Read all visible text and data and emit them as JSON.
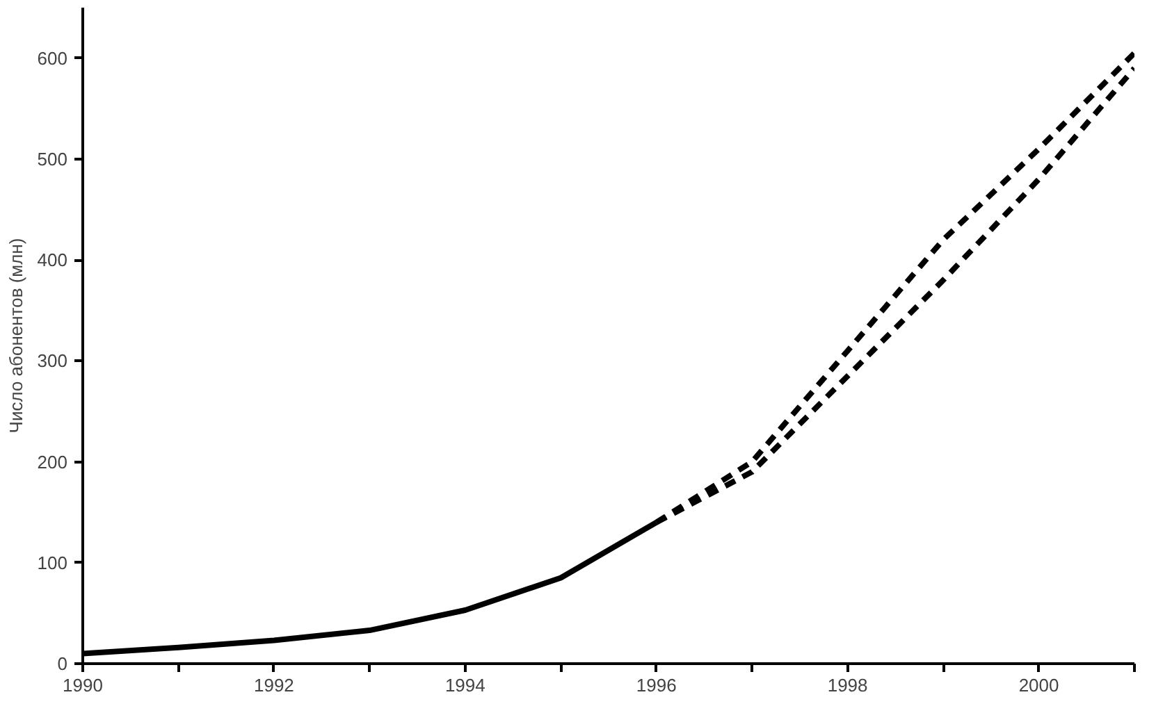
{
  "chart_data": {
    "type": "line",
    "ylabel": "Число абонентов (млн)",
    "xlim": [
      1990,
      2001
    ],
    "ylim": [
      0,
      650
    ],
    "xticks": [
      1990,
      {
        "value": 1991,
        "label": null
      },
      1992,
      {
        "value": 1993,
        "label": null
      },
      1994,
      {
        "value": 1995,
        "label": null
      },
      1996,
      {
        "value": 1997,
        "label": null
      },
      1998,
      {
        "value": 1999,
        "label": null
      },
      2000,
      {
        "value": 2001,
        "label": null
      }
    ],
    "yticks": [
      0,
      100,
      200,
      300,
      400,
      500,
      600
    ],
    "grid": false,
    "marker": "none",
    "series": [
      {
        "color": "#000000",
        "line_style": "solid",
        "x": [
          1990,
          1991,
          1992,
          1993,
          1994,
          1995,
          1996
        ],
        "values": [
          10,
          16,
          23,
          33,
          53,
          85,
          140
        ]
      },
      {
        "color": "#000000",
        "line_style": "dashed",
        "x": [
          1996,
          1997,
          1998,
          1999,
          2000,
          2001
        ],
        "values": [
          140,
          200,
          310,
          420,
          510,
          605
        ]
      },
      {
        "color": "#000000",
        "line_style": "dashed",
        "x": [
          1996,
          1997,
          1998,
          1999,
          2000,
          2001
        ],
        "values": [
          140,
          190,
          285,
          380,
          480,
          590
        ]
      }
    ]
  }
}
